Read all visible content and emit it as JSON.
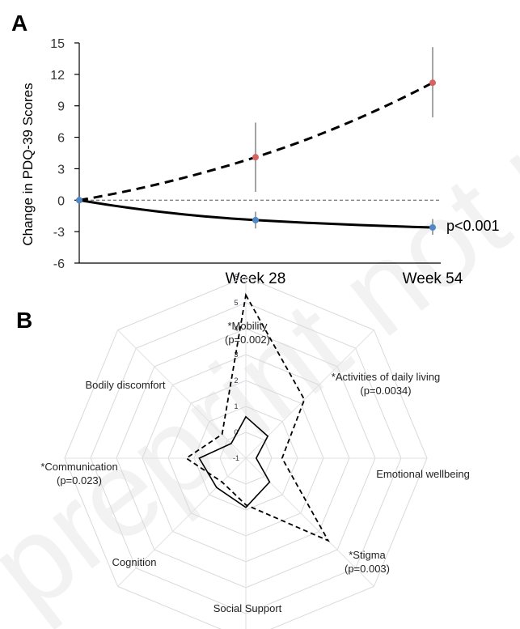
{
  "watermark": "preprint not peer reviewed",
  "chart_data": [
    {
      "panel": "A",
      "type": "line",
      "ylabel": "Change in PDQ-39  Scores",
      "ylim": [
        -6,
        15
      ],
      "yticks": [
        -6,
        -3,
        0,
        3,
        6,
        9,
        12,
        15
      ],
      "categories": [
        "",
        "Week 28",
        "Week 54"
      ],
      "grid": false,
      "reference_line": 0,
      "annotation": "p<0.001",
      "series": [
        {
          "style": "dashed",
          "marker_color": "#d6635f",
          "values": [
            0,
            4.1,
            11.2
          ],
          "error_low": [
            0,
            0.8,
            7.9
          ],
          "error_high": [
            0,
            7.4,
            14.6
          ]
        },
        {
          "style": "solid",
          "marker_color": "#4f88c6",
          "values": [
            0,
            -1.9,
            -2.6
          ],
          "error_low": [
            0,
            -2.7,
            -3.3
          ],
          "error_high": [
            0,
            -1.1,
            -1.8
          ]
        }
      ]
    },
    {
      "panel": "B",
      "type": "radar",
      "rlim": [
        -1,
        6
      ],
      "rticks": [
        -1,
        0,
        1,
        2,
        3,
        4,
        5,
        6
      ],
      "axes": [
        {
          "name": "*Mobility",
          "sub": "(p=0.002)"
        },
        {
          "name": "*Activities of daily living",
          "sub": "(p=0.0034)"
        },
        {
          "name": "Emotional wellbeing",
          "sub": ""
        },
        {
          "name": "*Stigma",
          "sub": "(p=0.003)"
        },
        {
          "name": "Social Support",
          "sub": ""
        },
        {
          "name": "Cognition",
          "sub": ""
        },
        {
          "name": "*Communication",
          "sub": "(p=0.023)"
        },
        {
          "name": "Bodily discomfort",
          "sub": ""
        }
      ],
      "series": [
        {
          "style": "dashed",
          "values": [
            5.3,
            2.2,
            0.4,
            3.5,
            0.8,
            0.3,
            1.3,
            0.3
          ]
        },
        {
          "style": "solid",
          "values": [
            0.6,
            0.2,
            -0.6,
            0.3,
            0.9,
            0.6,
            0.8,
            -0.2
          ]
        }
      ]
    }
  ]
}
